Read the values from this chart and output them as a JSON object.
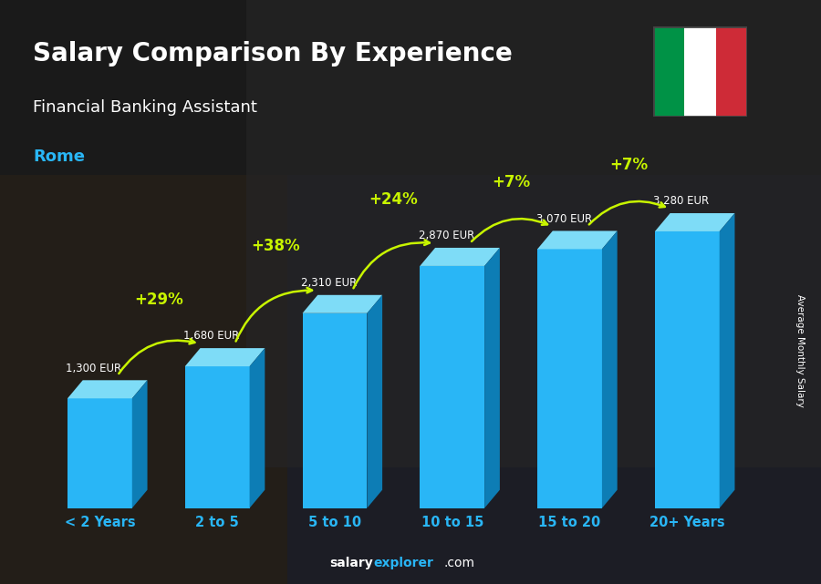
{
  "title": "Salary Comparison By Experience",
  "subtitle": "Financial Banking Assistant",
  "city": "Rome",
  "ylabel": "Average Monthly Salary",
  "categories": [
    "< 2 Years",
    "2 to 5",
    "5 to 10",
    "10 to 15",
    "15 to 20",
    "20+ Years"
  ],
  "values": [
    1300,
    1680,
    2310,
    2870,
    3070,
    3280
  ],
  "labels": [
    "1,300 EUR",
    "1,680 EUR",
    "2,310 EUR",
    "2,870 EUR",
    "3,070 EUR",
    "3,280 EUR"
  ],
  "pct_changes": [
    "+29%",
    "+38%",
    "+24%",
    "+7%",
    "+7%"
  ],
  "front_color": "#29b6f6",
  "top_color": "#7edcf7",
  "side_color": "#0d7db5",
  "title_color": "#ffffff",
  "subtitle_color": "#ffffff",
  "city_color": "#29b6f6",
  "label_color": "#ffffff",
  "pct_color": "#c8f500",
  "arrow_color": "#c8f500",
  "xtick_color": "#29b6f6",
  "bg_color": "#2d2d2d",
  "footer_salary_color": "#ffffff",
  "footer_explorer_color": "#29b6f6",
  "footer_com_color": "#ffffff",
  "flag_green": "#009246",
  "flag_white": "#ffffff",
  "flag_red": "#ce2b37",
  "flag_border": "#444444"
}
